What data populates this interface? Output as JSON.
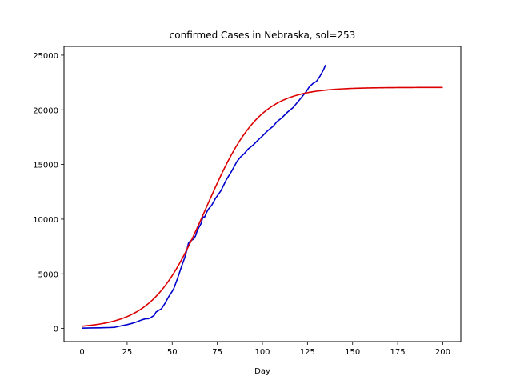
{
  "chart_data": {
    "type": "line",
    "title": "confirmed Cases in Nebraska, sol=253",
    "xlabel": "Day",
    "ylabel": "",
    "xlim": [
      -10,
      210
    ],
    "ylim": [
      -1200,
      25800
    ],
    "xticks": [
      0,
      25,
      50,
      75,
      100,
      125,
      150,
      175,
      200
    ],
    "yticks": [
      0,
      5000,
      10000,
      15000,
      20000,
      25000
    ],
    "grid": false,
    "series": [
      {
        "color": "#0000cc",
        "points": [
          [
            0,
            30
          ],
          [
            5,
            50
          ],
          [
            10,
            60
          ],
          [
            15,
            80
          ],
          [
            18,
            100
          ],
          [
            20,
            180
          ],
          [
            25,
            350
          ],
          [
            28,
            480
          ],
          [
            30,
            580
          ],
          [
            33,
            780
          ],
          [
            35,
            880
          ],
          [
            37,
            900
          ],
          [
            38,
            980
          ],
          [
            40,
            1200
          ],
          [
            41,
            1500
          ],
          [
            43,
            1700
          ],
          [
            44,
            1800
          ],
          [
            46,
            2300
          ],
          [
            48,
            2900
          ],
          [
            50,
            3400
          ],
          [
            51,
            3700
          ],
          [
            53,
            4600
          ],
          [
            55,
            5600
          ],
          [
            57,
            6500
          ],
          [
            58,
            7100
          ],
          [
            59,
            7800
          ],
          [
            60,
            8000
          ],
          [
            62,
            8200
          ],
          [
            63,
            8500
          ],
          [
            64,
            9000
          ],
          [
            66,
            9600
          ],
          [
            67,
            10200
          ],
          [
            68,
            10200
          ],
          [
            69,
            10600
          ],
          [
            70,
            10900
          ],
          [
            72,
            11300
          ],
          [
            74,
            11900
          ],
          [
            77,
            12600
          ],
          [
            80,
            13600
          ],
          [
            83,
            14400
          ],
          [
            86,
            15300
          ],
          [
            88,
            15700
          ],
          [
            90,
            16000
          ],
          [
            92,
            16400
          ],
          [
            95,
            16800
          ],
          [
            98,
            17300
          ],
          [
            100,
            17600
          ],
          [
            103,
            18100
          ],
          [
            106,
            18500
          ],
          [
            108,
            18900
          ],
          [
            111,
            19300
          ],
          [
            114,
            19800
          ],
          [
            117,
            20200
          ],
          [
            120,
            20800
          ],
          [
            122,
            21200
          ],
          [
            124,
            21600
          ],
          [
            126,
            22100
          ],
          [
            128,
            22400
          ],
          [
            130,
            22600
          ],
          [
            132,
            23100
          ],
          [
            134,
            23700
          ],
          [
            135,
            24100
          ]
        ]
      },
      {
        "color": "#dd0000",
        "model": {
          "type": "logistic",
          "K": 22050,
          "r": 0.0675,
          "x0": 68.8
        },
        "x_range": [
          0,
          200
        ]
      }
    ]
  }
}
